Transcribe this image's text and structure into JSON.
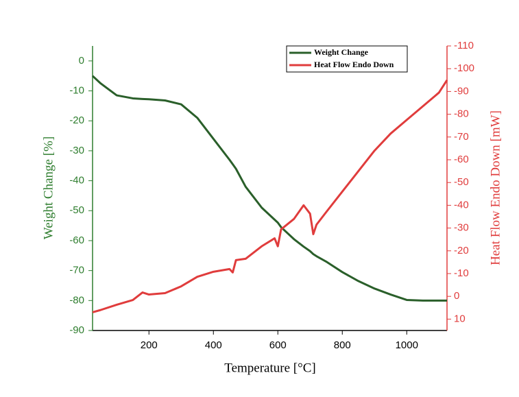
{
  "chart_data": {
    "type": "line",
    "x_label": "Temperature [°C]",
    "y_label": "Weight Change [%]",
    "y2_label": "Heat Flow Endo Down [mW]",
    "xlim": [
      25,
      1125
    ],
    "xticks": [
      200,
      400,
      600,
      800,
      1000
    ],
    "ylim": [
      -90,
      5
    ],
    "yticks": [
      0,
      -10,
      -20,
      -30,
      -40,
      -50,
      -60,
      -70,
      -80,
      -90
    ],
    "y2lim": [
      15,
      -110
    ],
    "y2ticks": [
      10,
      0,
      -10,
      -20,
      -30,
      -40,
      -50,
      -60,
      -70,
      -80,
      -90,
      -100,
      -110
    ],
    "y_color": "#2e7d2e",
    "y2_color": "#e03c3c",
    "legend": "upper right",
    "x": [
      25,
      50,
      100,
      150,
      180,
      200,
      250,
      300,
      350,
      400,
      450,
      460,
      470,
      500,
      550,
      590,
      600,
      610,
      650,
      680,
      700,
      710,
      720,
      750,
      800,
      850,
      900,
      950,
      1000,
      1050,
      1100,
      1125
    ],
    "series": [
      {
        "name": "Weight Change",
        "color": "#2a5f2a",
        "values": [
          -5,
          -7.5,
          -11.5,
          -12.5,
          -12.7,
          -12.8,
          -13.2,
          -14.5,
          -19,
          -26,
          -33,
          -34.5,
          -36,
          -42,
          -49,
          -53,
          -54,
          -55.5,
          -59.5,
          -62,
          -63.5,
          -64.5,
          -65.2,
          -67,
          -70.5,
          -73.5,
          -76,
          -78,
          -79.8,
          -80,
          -80,
          -80
        ]
      },
      {
        "name": "Heat Flow Endo Down",
        "color": "#e03c3c",
        "axis": "y2",
        "values": [
          7,
          6,
          3.7,
          1.6,
          -1.7,
          -0.8,
          -1.4,
          -4.4,
          -8.6,
          -10.8,
          -12,
          -10.5,
          -15.9,
          -16.5,
          -22,
          -25.5,
          -22,
          -29.4,
          -34,
          -40,
          -36.3,
          -27.3,
          -31.5,
          -37,
          -46,
          -55,
          -64,
          -71.5,
          -77.5,
          -83.5,
          -89.5,
          -95
        ]
      }
    ]
  }
}
